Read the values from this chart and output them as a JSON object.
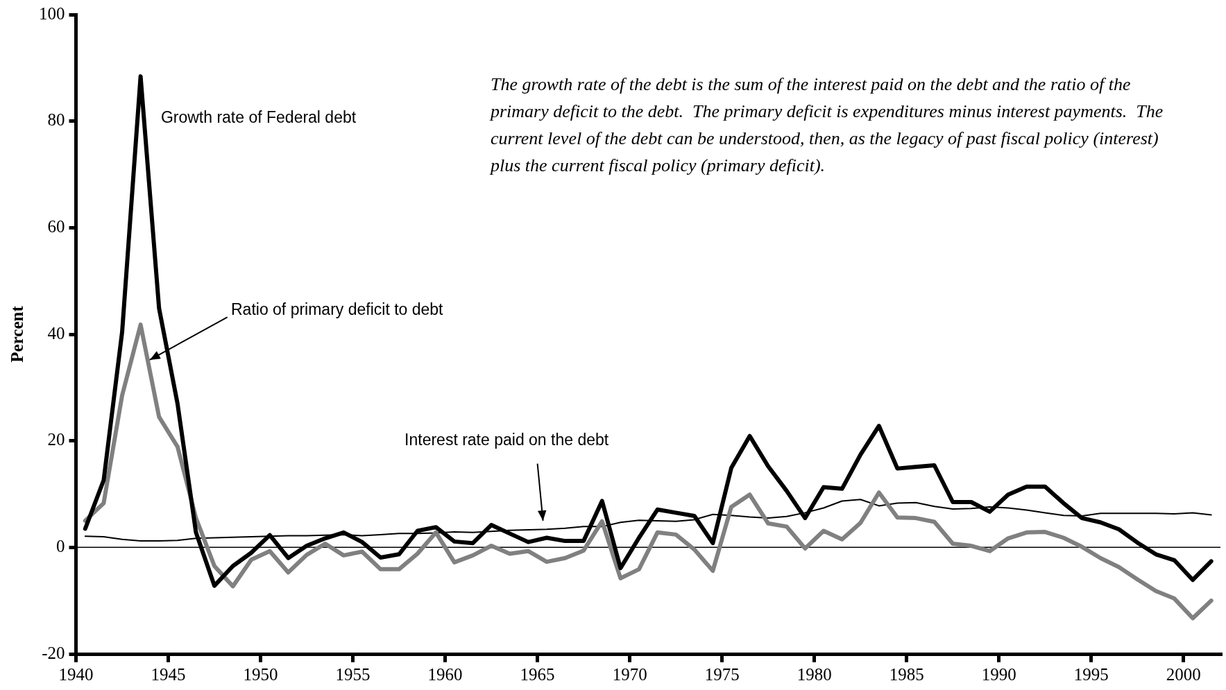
{
  "chart_data": {
    "type": "line",
    "ylabel": "Percent",
    "x": [
      1940.5,
      1941.5,
      1942.5,
      1943.5,
      1944.5,
      1945.5,
      1946.5,
      1947.5,
      1948.5,
      1949.5,
      1950.5,
      1951.5,
      1952.5,
      1953.5,
      1954.5,
      1955.5,
      1956.5,
      1957.5,
      1958.5,
      1959.5,
      1960.5,
      1961.5,
      1962.5,
      1963.5,
      1964.5,
      1965.5,
      1966.5,
      1967.5,
      1968.5,
      1969.5,
      1970.5,
      1971.5,
      1972.5,
      1973.5,
      1974.5,
      1975.5,
      1976.5,
      1977.5,
      1978.5,
      1979.5,
      1980.5,
      1981.5,
      1982.5,
      1983.5,
      1984.5,
      1985.5,
      1986.5,
      1987.5,
      1988.5,
      1989.5,
      1990.5,
      1991.5,
      1992.5,
      1993.5,
      1994.5,
      1995.5,
      1996.5,
      1997.5,
      1998.5,
      1999.5,
      2000.5,
      2001.5
    ],
    "series": [
      {
        "name": "Growth rate of Federal debt",
        "color": "#000000",
        "values": [
          3.5,
          12.6,
          40.4,
          88.4,
          44.9,
          27,
          2.8,
          -7.2,
          -3.5,
          -1.0,
          2.3,
          -2.0,
          0.3,
          1.7,
          2.8,
          1.0,
          -1.9,
          -1.3,
          3.1,
          3.8,
          1.1,
          0.8,
          4.2,
          2.6,
          1.0,
          1.8,
          1.2,
          1.2,
          8.7,
          -3.9,
          1.8,
          7.1,
          6.5,
          5.9,
          0.8,
          14.9,
          20.9,
          15.2,
          10.6,
          5.5,
          11.3,
          11.0,
          17.4,
          22.8,
          14.8,
          15.1,
          15.4,
          8.5,
          8.5,
          6.7,
          9.9,
          11.4,
          11.4,
          8.3,
          5.5,
          4.7,
          3.4,
          0.9,
          -1.3,
          -2.4,
          -6.1,
          -2.6
        ]
      },
      {
        "name": "Ratio of primary deficit to debt",
        "color": "#808080",
        "values": [
          5.0,
          8.3,
          28.5,
          41.8,
          24.5,
          18.9,
          5.5,
          -3.5,
          -7.3,
          -2.3,
          -0.7,
          -4.7,
          -1.4,
          0.7,
          -1.5,
          -0.8,
          -4.1,
          -4.1,
          -1.2,
          2.8,
          -2.8,
          -1.5,
          0.3,
          -1.2,
          -0.7,
          -2.7,
          -2.0,
          -0.6,
          4.9,
          -5.8,
          -4.1,
          2.8,
          2.4,
          -0.4,
          -4.4,
          7.6,
          9.9,
          4.5,
          3.9,
          -0.2,
          3.1,
          1.5,
          4.6,
          10.3,
          5.6,
          5.5,
          4.8,
          0.7,
          0.3,
          -0.7,
          1.7,
          2.8,
          2.9,
          1.8,
          0.1,
          -2.0,
          -3.7,
          -6.0,
          -8.2,
          -9.6,
          -13.3,
          -10.0
        ]
      },
      {
        "name": "Interest rate paid on the debt",
        "color": "#000000",
        "values": [
          2.1,
          2.0,
          1.5,
          1.2,
          1.2,
          1.3,
          1.7,
          1.8,
          1.9,
          2.0,
          2.1,
          2.2,
          2.2,
          2.3,
          2.4,
          2.2,
          2.4,
          2.6,
          2.6,
          2.7,
          2.9,
          2.8,
          3.0,
          3.2,
          3.3,
          3.4,
          3.6,
          3.9,
          3.9,
          4.7,
          5.1,
          5.0,
          4.9,
          5.2,
          6.2,
          6.0,
          5.7,
          5.5,
          5.8,
          6.5,
          7.4,
          8.7,
          9.0,
          7.8,
          8.3,
          8.4,
          7.7,
          7.2,
          7.3,
          7.6,
          7.4,
          7.0,
          6.5,
          6.0,
          5.9,
          6.4,
          6.4,
          6.4,
          6.4,
          6.3,
          6.5,
          6.1
        ]
      }
    ],
    "xlim": [
      1940,
      2002
    ],
    "xticks": [
      1940,
      1945,
      1950,
      1955,
      1960,
      1965,
      1970,
      1975,
      1980,
      1985,
      1990,
      1995,
      2000
    ],
    "ylim": [
      -20,
      100
    ],
    "yticks": [
      -20,
      0,
      20,
      40,
      60,
      80,
      100
    ],
    "ref_lines": [
      {
        "axis": "y",
        "value": 0,
        "color": "#000000"
      }
    ],
    "annotations": [
      "The growth rate of the debt is the sum of the interest paid on the debt and the ratio of the primary deficit to the debt.  The primary deficit is expenditures minus interest payments.  The current level of the debt can be understood, then, as the legacy of past fiscal policy (interest) plus the current fiscal policy (primary deficit)."
    ]
  }
}
